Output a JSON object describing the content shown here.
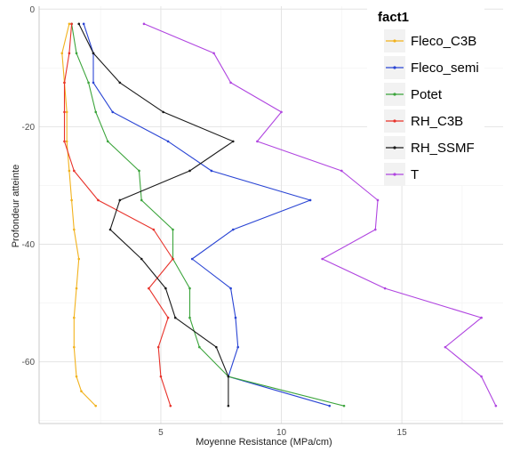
{
  "chart_data": {
    "type": "line",
    "title": "",
    "xlabel": "Moyenne Resistance (MPa/cm)",
    "ylabel": "Profondeur atteinte",
    "xlim": [
      -0.05,
      19.2
    ],
    "ylim": [
      -70.5,
      0.5
    ],
    "x_ticks": [
      5,
      10,
      15
    ],
    "y_ticks": [
      0,
      -20,
      -40,
      -60
    ],
    "y_tick_labels": [
      "0",
      "-20",
      "-40",
      "-60"
    ],
    "grid": true,
    "legend": {
      "title": "fact1",
      "position": "top-right"
    },
    "series": [
      {
        "name": "Fleco_C3B",
        "color": "#f2b21d",
        "points": [
          [
            1.2,
            -2.5
          ],
          [
            0.9,
            -7.5
          ],
          [
            1.0,
            -12.5
          ],
          [
            1.1,
            -17.5
          ],
          [
            1.1,
            -22.5
          ],
          [
            1.2,
            -27.5
          ],
          [
            1.3,
            -32.5
          ],
          [
            1.4,
            -37.5
          ],
          [
            1.6,
            -42.5
          ],
          [
            1.5,
            -47.5
          ],
          [
            1.4,
            -52.5
          ],
          [
            1.4,
            -57.5
          ],
          [
            1.5,
            -62.5
          ],
          [
            1.7,
            -65.0
          ],
          [
            2.3,
            -67.5
          ]
        ]
      },
      {
        "name": "Fleco_semi",
        "color": "#2a45d4",
        "points": [
          [
            1.8,
            -2.5
          ],
          [
            2.2,
            -7.5
          ],
          [
            2.2,
            -12.5
          ],
          [
            3.0,
            -17.5
          ],
          [
            5.3,
            -22.5
          ],
          [
            7.1,
            -27.5
          ],
          [
            11.2,
            -32.5
          ],
          [
            8.0,
            -37.5
          ],
          [
            6.3,
            -42.5
          ],
          [
            7.9,
            -47.5
          ],
          [
            8.1,
            -52.5
          ],
          [
            8.2,
            -57.5
          ],
          [
            7.8,
            -62.5
          ],
          [
            12.0,
            -67.5
          ]
        ]
      },
      {
        "name": "Potet",
        "color": "#3ba43b",
        "points": [
          [
            1.3,
            -2.5
          ],
          [
            1.5,
            -7.5
          ],
          [
            2.0,
            -12.5
          ],
          [
            2.3,
            -17.5
          ],
          [
            2.8,
            -22.5
          ],
          [
            4.1,
            -27.5
          ],
          [
            4.2,
            -32.5
          ],
          [
            5.5,
            -37.5
          ],
          [
            5.5,
            -42.5
          ],
          [
            6.2,
            -47.5
          ],
          [
            6.2,
            -52.5
          ],
          [
            6.6,
            -57.5
          ],
          [
            7.8,
            -62.5
          ],
          [
            12.6,
            -67.5
          ]
        ]
      },
      {
        "name": "RH_C3B",
        "color": "#e8322a",
        "points": [
          [
            1.3,
            -2.5
          ],
          [
            1.2,
            -7.5
          ],
          [
            1.0,
            -12.5
          ],
          [
            1.0,
            -17.5
          ],
          [
            1.0,
            -22.5
          ],
          [
            1.4,
            -27.5
          ],
          [
            2.4,
            -32.5
          ],
          [
            4.7,
            -37.5
          ],
          [
            5.5,
            -42.5
          ],
          [
            4.5,
            -47.5
          ],
          [
            5.3,
            -52.5
          ],
          [
            4.9,
            -57.5
          ],
          [
            5.0,
            -62.5
          ],
          [
            5.4,
            -67.5
          ]
        ]
      },
      {
        "name": "RH_SSMF",
        "color": "#1a1a1a",
        "points": [
          [
            1.6,
            -2.5
          ],
          [
            2.2,
            -7.5
          ],
          [
            3.3,
            -12.5
          ],
          [
            5.1,
            -17.5
          ],
          [
            8.0,
            -22.5
          ],
          [
            6.2,
            -27.5
          ],
          [
            3.3,
            -32.5
          ],
          [
            2.9,
            -37.5
          ],
          [
            4.2,
            -42.5
          ],
          [
            5.2,
            -47.5
          ],
          [
            5.6,
            -52.5
          ],
          [
            7.3,
            -57.5
          ],
          [
            7.8,
            -62.5
          ],
          [
            7.8,
            -67.5
          ]
        ]
      },
      {
        "name": "T",
        "color": "#b045e0",
        "points": [
          [
            4.3,
            -2.5
          ],
          [
            7.2,
            -7.5
          ],
          [
            7.9,
            -12.5
          ],
          [
            10.0,
            -17.5
          ],
          [
            9.0,
            -22.5
          ],
          [
            12.5,
            -27.5
          ],
          [
            14.0,
            -32.5
          ],
          [
            13.9,
            -37.5
          ],
          [
            11.7,
            -42.5
          ],
          [
            14.3,
            -47.5
          ],
          [
            18.3,
            -52.5
          ],
          [
            16.8,
            -57.5
          ],
          [
            18.3,
            -62.5
          ],
          [
            18.9,
            -67.5
          ]
        ]
      }
    ]
  }
}
